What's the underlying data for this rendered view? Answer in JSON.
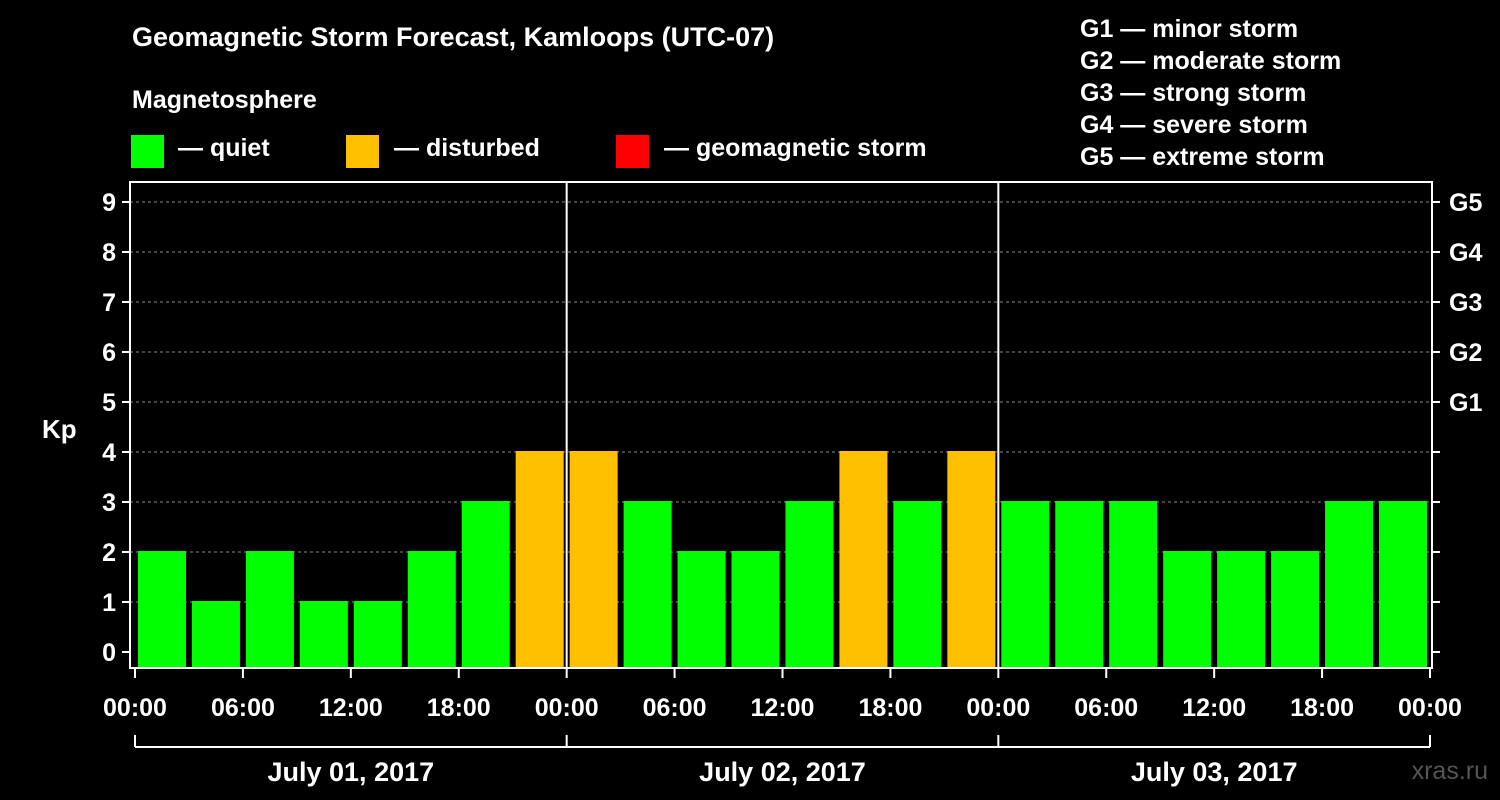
{
  "title": "Geomagnetic Storm Forecast, Kamloops (UTC-07)",
  "magnetosphere_label": "Magnetosphere",
  "legend": {
    "quiet": {
      "label": "— quiet",
      "color": "#00FF00"
    },
    "disturbed": {
      "label": "— disturbed",
      "color": "#FFC000"
    },
    "storm": {
      "label": "— geomagnetic storm",
      "color": "#FF0000"
    }
  },
  "g_scale": [
    "G1 — minor storm",
    "G2 — moderate storm",
    "G3 — strong storm",
    "G4 — severe storm",
    "G5 — extreme storm"
  ],
  "watermark": "xras.ru",
  "chart_data": {
    "type": "bar",
    "ylabel": "Kp",
    "ylim": [
      0,
      9
    ],
    "yticks": [
      0,
      1,
      2,
      3,
      4,
      5,
      6,
      7,
      8,
      9
    ],
    "right_ticks": [
      {
        "kp": 5,
        "label": "G1"
      },
      {
        "kp": 6,
        "label": "G2"
      },
      {
        "kp": 7,
        "label": "G3"
      },
      {
        "kp": 8,
        "label": "G4"
      },
      {
        "kp": 9,
        "label": "G5"
      }
    ],
    "grid": "dashed horizontal",
    "x_tick_labels": [
      "00:00",
      "06:00",
      "12:00",
      "18:00",
      "00:00",
      "06:00",
      "12:00",
      "18:00",
      "00:00",
      "06:00",
      "12:00",
      "18:00",
      "00:00"
    ],
    "days": [
      "July 01, 2017",
      "July 02, 2017",
      "July 03, 2017"
    ],
    "x_hours": [
      1.5,
      4.5,
      7.5,
      10.5,
      13.5,
      16.5,
      19.5,
      22.5,
      25.5,
      28.5,
      31.5,
      34.5,
      37.5,
      40.5,
      43.5,
      46.5,
      49.5,
      52.5,
      55.5,
      58.5,
      61.5,
      64.5,
      67.5,
      70.5
    ],
    "kp": [
      2,
      1,
      2,
      1,
      1,
      2,
      3,
      4,
      4,
      3,
      2,
      2,
      3,
      4,
      3,
      4,
      3,
      3,
      3,
      2,
      2,
      2,
      3,
      3
    ],
    "status": [
      "quiet",
      "quiet",
      "quiet",
      "quiet",
      "quiet",
      "quiet",
      "quiet",
      "disturbed",
      "disturbed",
      "quiet",
      "quiet",
      "quiet",
      "quiet",
      "disturbed",
      "quiet",
      "disturbed",
      "quiet",
      "quiet",
      "quiet",
      "quiet",
      "quiet",
      "quiet",
      "quiet",
      "quiet"
    ]
  }
}
